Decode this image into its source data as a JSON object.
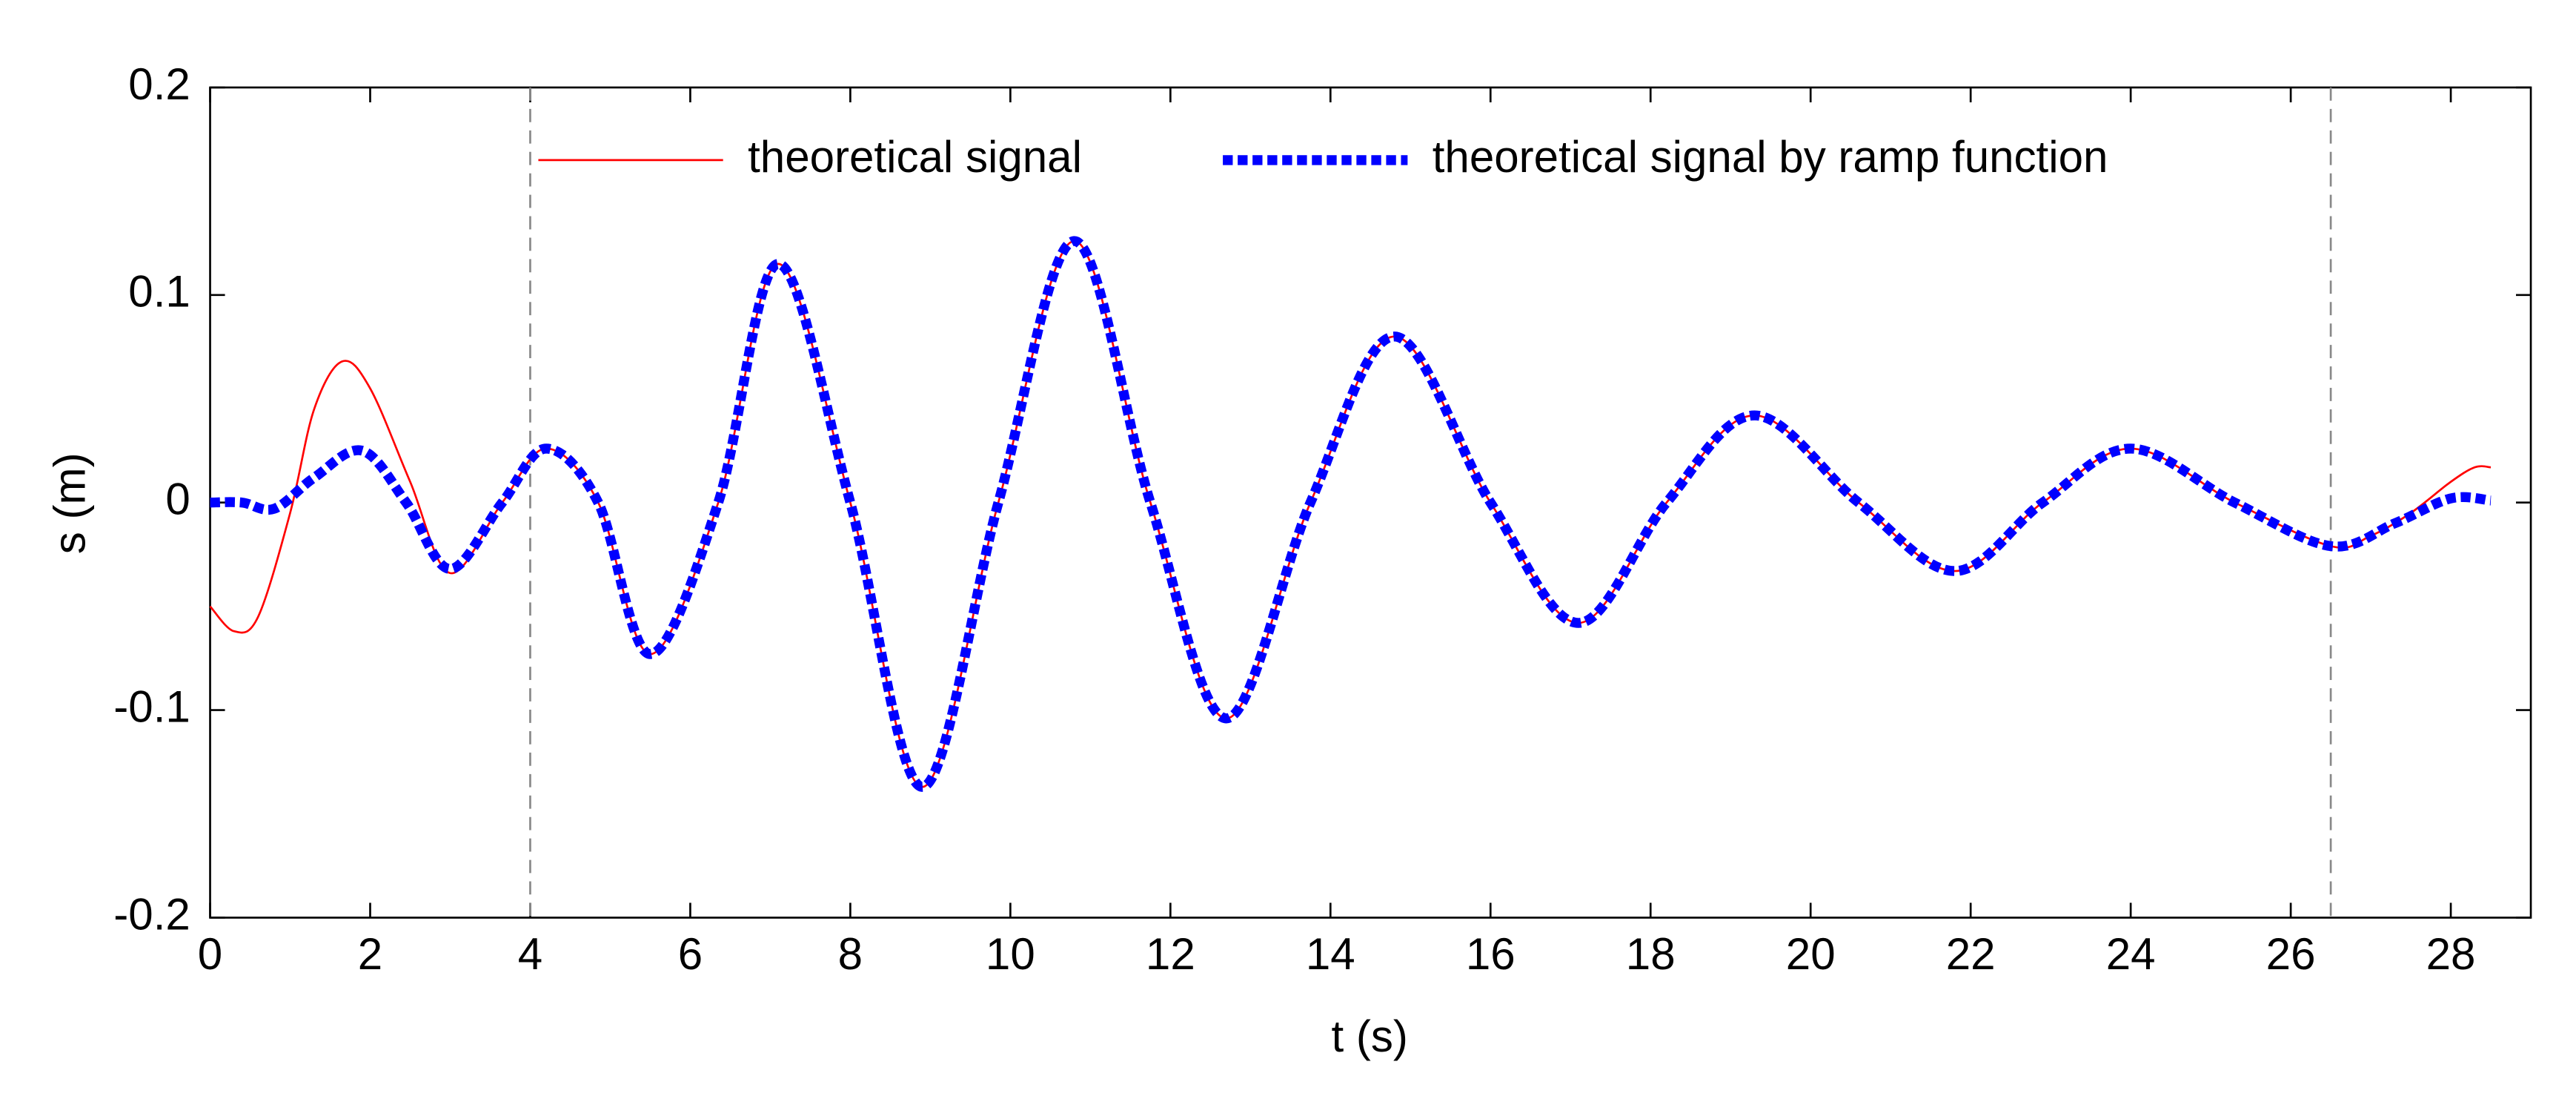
{
  "chart_data": {
    "type": "line",
    "xlabel": "t (s)",
    "ylabel": "s (m)",
    "xlim": [
      0,
      29
    ],
    "ylim": [
      -0.2,
      0.2
    ],
    "xticks": [
      0,
      2,
      4,
      6,
      8,
      10,
      12,
      14,
      16,
      18,
      20,
      22,
      24,
      26,
      28
    ],
    "yticks": [
      -0.2,
      -0.1,
      0,
      0.1,
      0.2
    ],
    "vlines": [
      4,
      26.5
    ],
    "legend": "top",
    "series": [
      {
        "name": "theoretical signal",
        "color": "#ff0000",
        "style": "solid",
        "x": [
          0,
          0.3,
          0.6,
          1.0,
          1.3,
          1.65,
          2.0,
          2.5,
          3.0,
          3.65,
          4.2,
          4.85,
          5.5,
          6.35,
          7.1,
          8.0,
          8.9,
          9.85,
          10.8,
          11.75,
          12.7,
          13.75,
          14.8,
          16.0,
          17.1,
          18.2,
          19.3,
          20.6,
          21.8,
          22.9,
          24.0,
          25.3,
          26.5,
          27.0,
          27.5,
          28.0,
          28.3,
          28.5
        ],
        "values": [
          -0.05,
          -0.062,
          -0.055,
          -0.005,
          0.045,
          0.068,
          0.055,
          0.01,
          -0.034,
          0,
          0.026,
          0,
          -0.073,
          0,
          0.115,
          0,
          -0.137,
          0,
          0.126,
          0,
          -0.104,
          0,
          0.08,
          0,
          -0.058,
          0,
          0.042,
          0,
          -0.033,
          0,
          0.026,
          0,
          -0.021,
          -0.016,
          -0.005,
          0.01,
          0.017,
          0.017
        ]
      },
      {
        "name": "theoretical signal by ramp function",
        "color": "#0000ff",
        "style": "dotted",
        "x": [
          0,
          0.4,
          0.8,
          1.3,
          1.9,
          2.45,
          3.0,
          3.65,
          4.2,
          4.85,
          5.5,
          6.35,
          7.1,
          8.0,
          8.9,
          9.85,
          10.8,
          11.75,
          12.7,
          13.75,
          14.8,
          16.0,
          17.1,
          18.2,
          19.3,
          20.6,
          21.8,
          22.9,
          24.0,
          25.3,
          26.5,
          27.3,
          28.0,
          28.5
        ],
        "values": [
          0,
          0,
          -0.003,
          0.012,
          0.025,
          0,
          -0.032,
          0,
          0.026,
          0,
          -0.073,
          0,
          0.115,
          0,
          -0.137,
          0,
          0.126,
          0,
          -0.104,
          0,
          0.08,
          0,
          -0.058,
          0,
          0.042,
          0,
          -0.033,
          0,
          0.026,
          0,
          -0.021,
          -0.01,
          0.002,
          0.001
        ]
      }
    ]
  }
}
